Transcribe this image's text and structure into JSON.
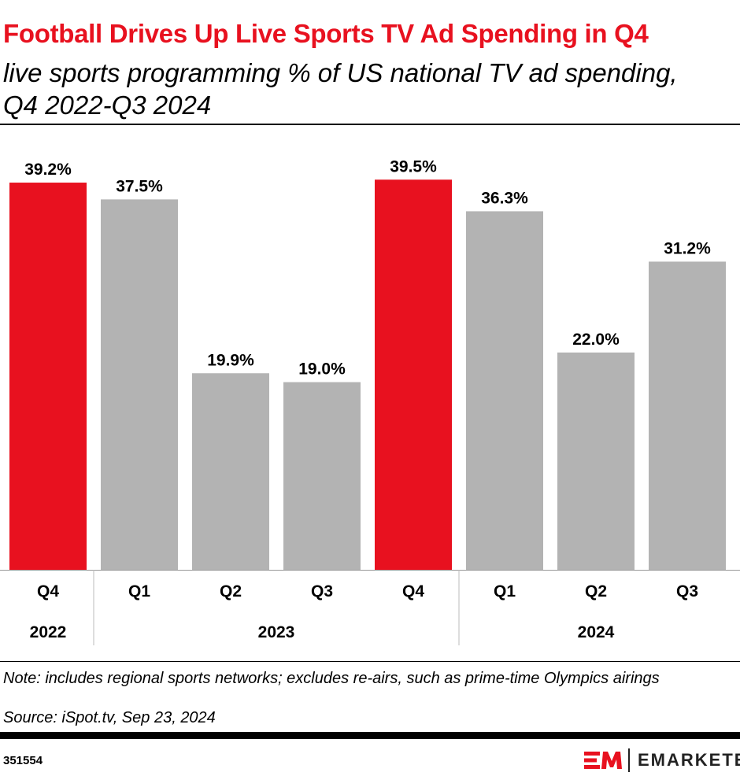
{
  "title": "Football Drives Up Live Sports TV Ad Spending in Q4",
  "subtitle": "live sports programming % of US national TV ad spending, Q4 2022-Q3 2024",
  "chart_data": {
    "type": "bar",
    "categories": [
      "Q4",
      "Q1",
      "Q2",
      "Q3",
      "Q4",
      "Q1",
      "Q2",
      "Q3"
    ],
    "groups": [
      {
        "label": "2022",
        "count": 1
      },
      {
        "label": "2023",
        "count": 4
      },
      {
        "label": "2024",
        "count": 3
      }
    ],
    "values": [
      39.2,
      37.5,
      19.9,
      19.0,
      39.5,
      36.3,
      22.0,
      31.2
    ],
    "data_labels": [
      "39.2%",
      "37.5%",
      "19.9%",
      "19.0%",
      "39.5%",
      "36.3%",
      "22.0%",
      "31.2%"
    ],
    "highlight": [
      true,
      false,
      false,
      false,
      true,
      false,
      false,
      false
    ],
    "colors": {
      "highlight": "#e8111f",
      "default": "#b3b3b3"
    },
    "ylim": [
      0,
      40
    ],
    "grid": false
  },
  "notes": {
    "note": "Note: includes regional sports networks; excludes re-airs, such as prime-time Olympics airings",
    "source": "Source: iSpot.tv, Sep 23, 2024"
  },
  "footer": {
    "id": "351554",
    "brand": "EMARKETER",
    "brand_color": "#e8111f"
  }
}
